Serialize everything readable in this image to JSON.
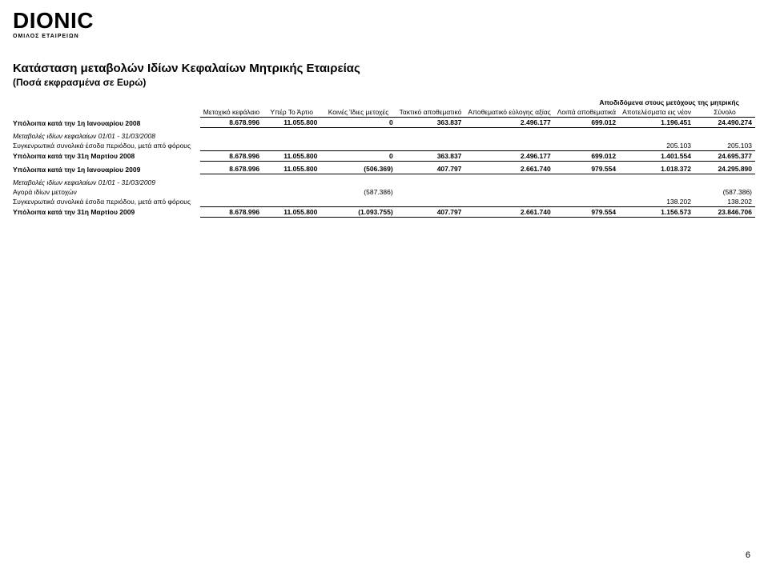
{
  "logo": {
    "main": "DIONIC",
    "sub": "ΟΜΙΛΟΣ ΕΤΑΙΡΕΙΩΝ"
  },
  "title": "Κατάσταση μεταβολών Ιδίων Κεφαλαίων Μητρικής Εταιρείας",
  "subtitle": "(Ποσά εκφρασμένα σε Ευρώ)",
  "section_header": "Αποδιδόμενα στους μετόχους της μητρικής",
  "headers": {
    "c1": "Μετοχικό κεφάλαιο",
    "c2": "Υπέρ Το Άρτιο",
    "c3": "Κοινές Ίδιες μετοχές",
    "c4": "Τακτικό αποθεματικό",
    "c5": "Αποθεματικό εύλογης αξίας",
    "c6": "Λοιπά αποθεματικά",
    "c7": "Αποτελέσματα εις νέον",
    "c8": "Σύνολο"
  },
  "rows": {
    "bal_jan08": {
      "label": "Υπόλοιπα κατά την 1η Ιανουαρίου 2008",
      "c1": "8.678.996",
      "c2": "11.055.800",
      "c3": "0",
      "c4": "363.837",
      "c5": "2.496.177",
      "c6": "699.012",
      "c7": "1.196.451",
      "c8": "24.490.274"
    },
    "chg0108": {
      "label": "Μεταβολές ιδίων κεφαλαίων 01/01 - 31/03/2008"
    },
    "comp08": {
      "label": "Συγκενρωτικά συνολικά έσοδα περιόδου, μετά από φόρους",
      "c7": "205.103",
      "c8": "205.103"
    },
    "bal_mar08": {
      "label": "Υπόλοιπα κατά την 31η  Μαρτίου 2008",
      "c1": "8.678.996",
      "c2": "11.055.800",
      "c3": "0",
      "c4": "363.837",
      "c5": "2.496.177",
      "c6": "699.012",
      "c7": "1.401.554",
      "c8": "24.695.377"
    },
    "bal_jan09": {
      "label": "Υπόλοιπα κατά την 1η Ιανουαρίου 2009",
      "c1": "8.678.996",
      "c2": "11.055.800",
      "c3": "(506.369)",
      "c4": "407.797",
      "c5": "2.661.740",
      "c6": "979.554",
      "c7": "1.018.372",
      "c8": "24.295.890"
    },
    "chg0109": {
      "label": "Μεταβολές ιδίων κεφαλαίων 01/01 - 31/03/2009"
    },
    "buy09": {
      "label": "Αγορά ιδίων μετοχών",
      "c3": "(587.386)",
      "c8": "(587.386)"
    },
    "comp09": {
      "label": "Συγκενρωτικά συνολικά έσοδα περιόδου, μετά από φόρους",
      "c7": "138.202",
      "c8": "138.202"
    },
    "bal_mar09": {
      "label": "Υπόλοιπα κατά την 31η  Μαρτίου 2009",
      "c1": "8.678.996",
      "c2": "11.055.800",
      "c3": "(1.093.755)",
      "c4": "407.797",
      "c5": "2.661.740",
      "c6": "979.554",
      "c7": "1.156.573",
      "c8": "23.846.706"
    }
  },
  "page_number": "6",
  "colors": {
    "text": "#000000",
    "bg": "#ffffff"
  }
}
